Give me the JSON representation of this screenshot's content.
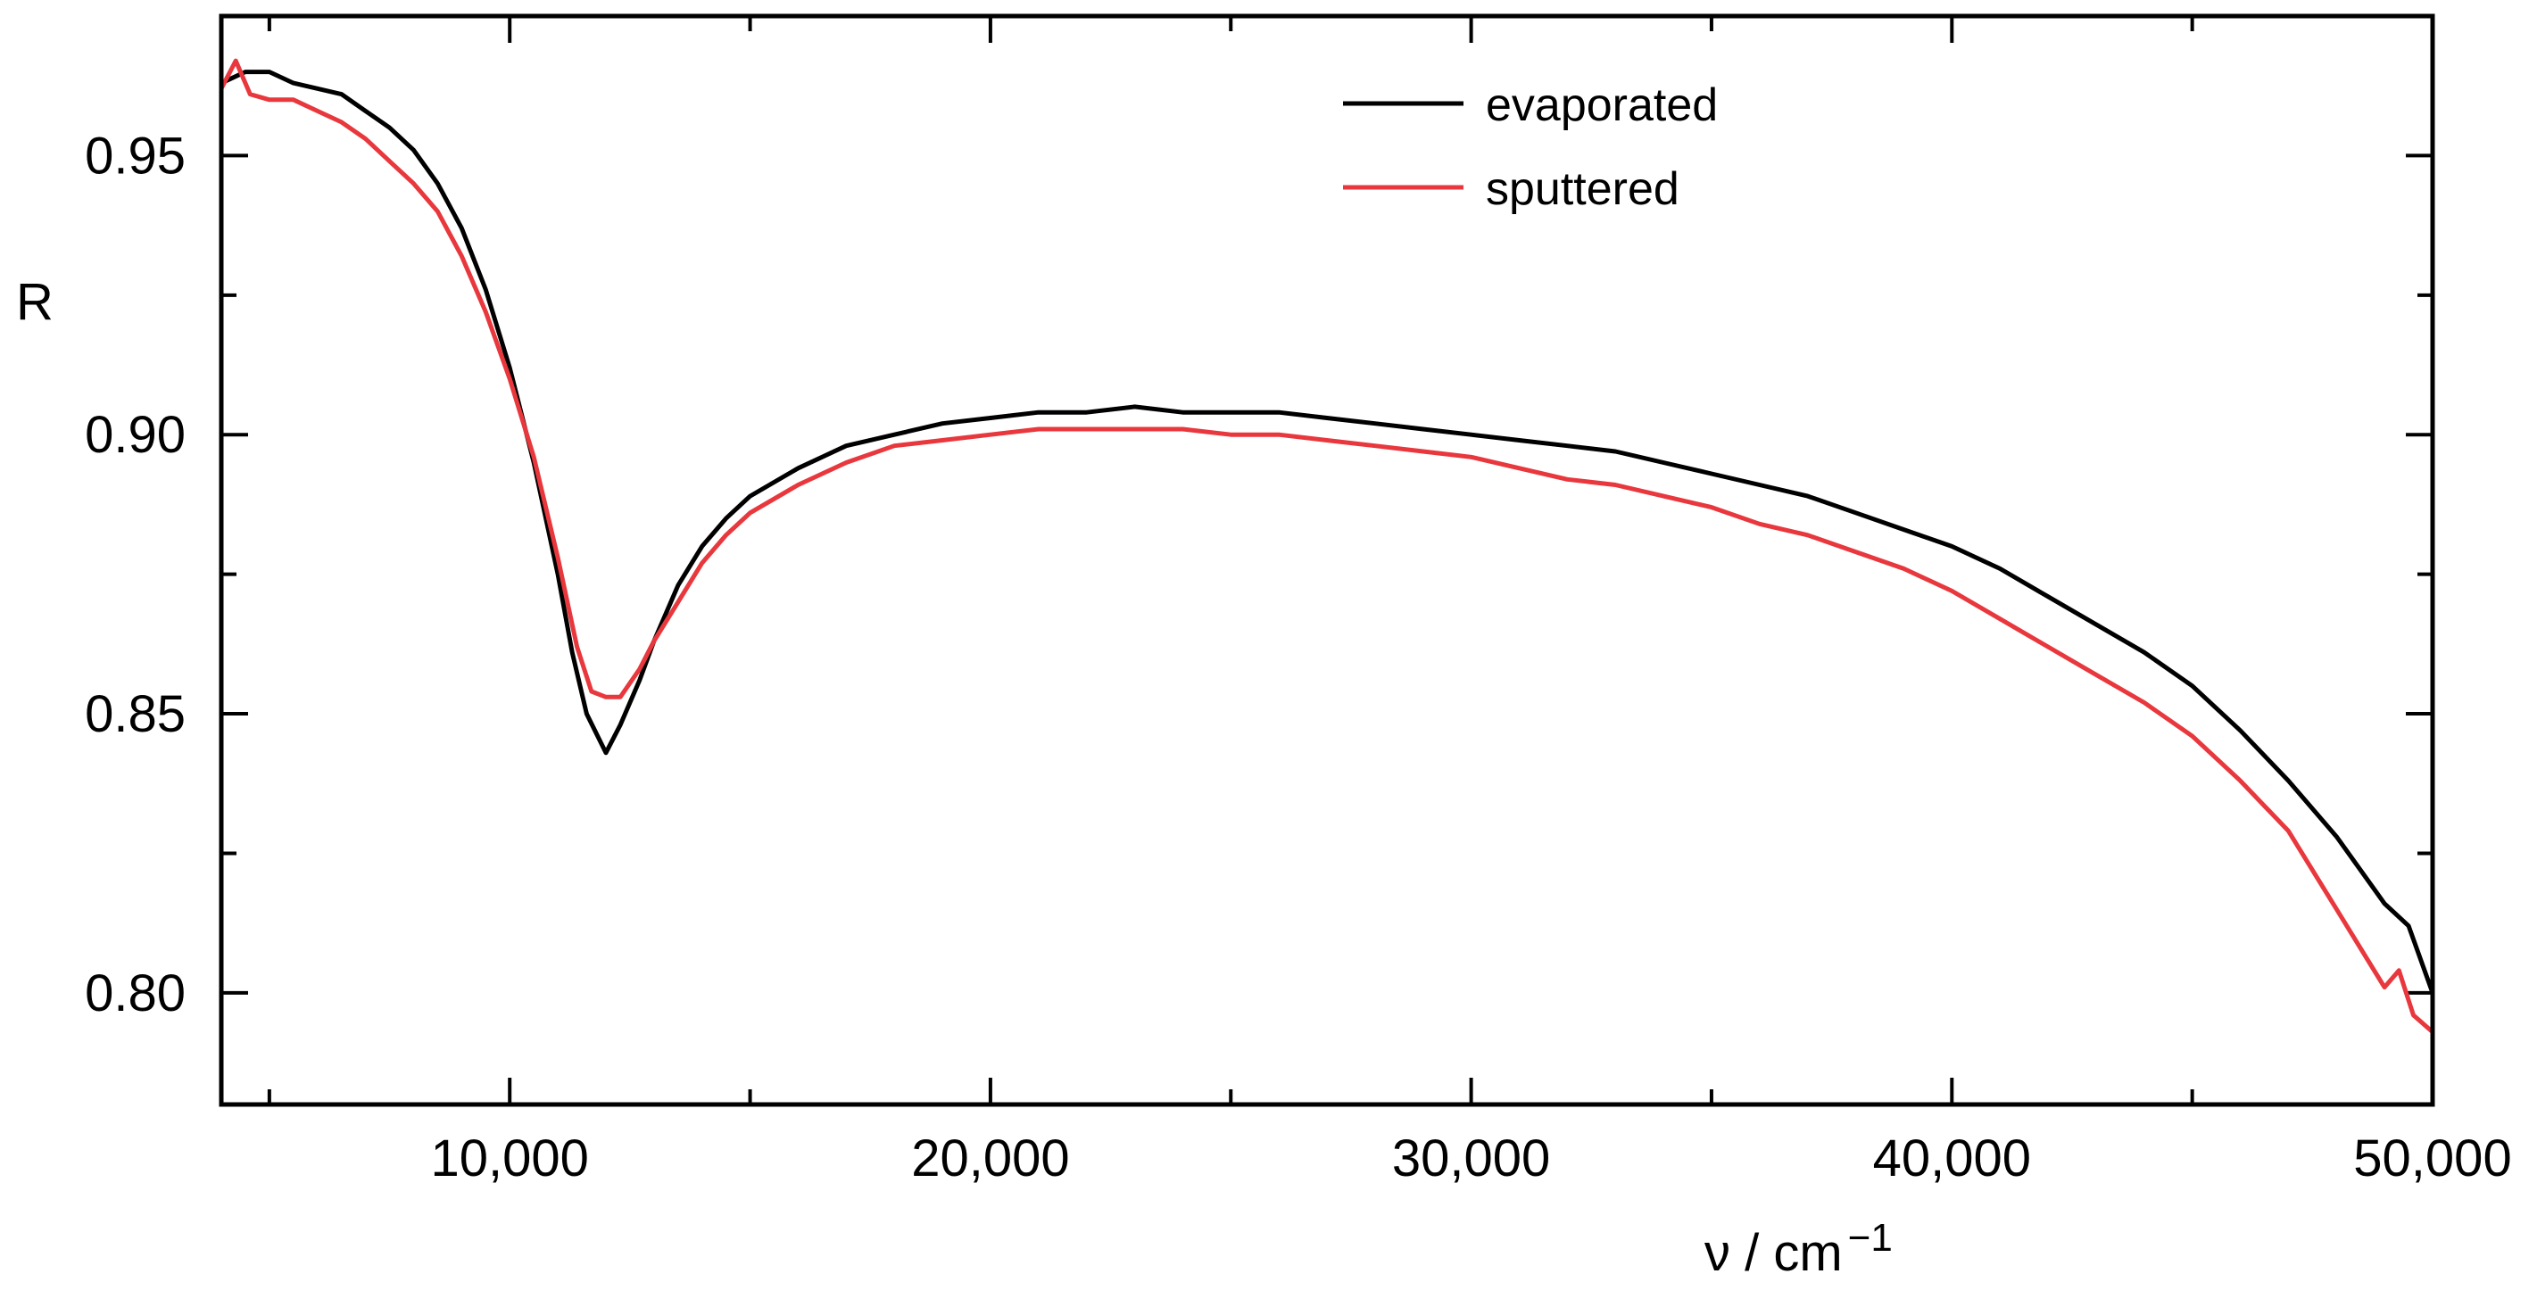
{
  "chart_data": {
    "type": "line",
    "title": "",
    "xlabel": "ν / cm",
    "xlabel_exponent": "−1",
    "ylabel": "R",
    "xlim": [
      4000,
      50000
    ],
    "ylim": [
      0.78,
      0.975
    ],
    "x_ticks": [
      10000,
      20000,
      30000,
      40000,
      50000
    ],
    "x_tick_labels": [
      "10,000",
      "20,000",
      "30,000",
      "40,000",
      "50,000"
    ],
    "y_ticks": [
      0.8,
      0.85,
      0.9,
      0.95
    ],
    "y_tick_labels": [
      "0.80",
      "0.85",
      "0.90",
      "0.95"
    ],
    "legend_position": "top-center",
    "grid": false,
    "series": [
      {
        "name": "evaporated",
        "color": "#000000",
        "points": [
          [
            4000,
            0.963
          ],
          [
            4500,
            0.965
          ],
          [
            5000,
            0.965
          ],
          [
            5500,
            0.963
          ],
          [
            6000,
            0.962
          ],
          [
            6500,
            0.961
          ],
          [
            7000,
            0.958
          ],
          [
            7500,
            0.955
          ],
          [
            8000,
            0.951
          ],
          [
            8500,
            0.945
          ],
          [
            9000,
            0.937
          ],
          [
            9500,
            0.926
          ],
          [
            10000,
            0.912
          ],
          [
            10500,
            0.895
          ],
          [
            11000,
            0.875
          ],
          [
            11300,
            0.861
          ],
          [
            11600,
            0.85
          ],
          [
            12000,
            0.843
          ],
          [
            12300,
            0.848
          ],
          [
            12700,
            0.856
          ],
          [
            13000,
            0.863
          ],
          [
            13500,
            0.873
          ],
          [
            14000,
            0.88
          ],
          [
            14500,
            0.885
          ],
          [
            15000,
            0.889
          ],
          [
            16000,
            0.894
          ],
          [
            17000,
            0.898
          ],
          [
            18000,
            0.9
          ],
          [
            19000,
            0.902
          ],
          [
            20000,
            0.903
          ],
          [
            21000,
            0.904
          ],
          [
            22000,
            0.904
          ],
          [
            23000,
            0.905
          ],
          [
            24000,
            0.904
          ],
          [
            25000,
            0.904
          ],
          [
            26000,
            0.904
          ],
          [
            27000,
            0.903
          ],
          [
            28000,
            0.902
          ],
          [
            29000,
            0.901
          ],
          [
            30000,
            0.9
          ],
          [
            31000,
            0.899
          ],
          [
            32000,
            0.898
          ],
          [
            33000,
            0.897
          ],
          [
            34000,
            0.895
          ],
          [
            35000,
            0.893
          ],
          [
            36000,
            0.891
          ],
          [
            37000,
            0.889
          ],
          [
            38000,
            0.886
          ],
          [
            39000,
            0.883
          ],
          [
            40000,
            0.88
          ],
          [
            41000,
            0.876
          ],
          [
            42000,
            0.871
          ],
          [
            43000,
            0.866
          ],
          [
            44000,
            0.861
          ],
          [
            45000,
            0.855
          ],
          [
            46000,
            0.847
          ],
          [
            47000,
            0.838
          ],
          [
            47500,
            0.833
          ],
          [
            48000,
            0.828
          ],
          [
            48500,
            0.822
          ],
          [
            49000,
            0.816
          ],
          [
            49500,
            0.812
          ],
          [
            50000,
            0.8
          ]
        ]
      },
      {
        "name": "sputtered",
        "color": "#e8383d",
        "points": [
          [
            4000,
            0.962
          ],
          [
            4300,
            0.967
          ],
          [
            4600,
            0.961
          ],
          [
            5000,
            0.96
          ],
          [
            5500,
            0.96
          ],
          [
            6000,
            0.958
          ],
          [
            6500,
            0.956
          ],
          [
            7000,
            0.953
          ],
          [
            7500,
            0.949
          ],
          [
            8000,
            0.945
          ],
          [
            8500,
            0.94
          ],
          [
            9000,
            0.932
          ],
          [
            9500,
            0.922
          ],
          [
            10000,
            0.91
          ],
          [
            10500,
            0.896
          ],
          [
            11000,
            0.878
          ],
          [
            11400,
            0.862
          ],
          [
            11700,
            0.854
          ],
          [
            12000,
            0.853
          ],
          [
            12300,
            0.853
          ],
          [
            12700,
            0.858
          ],
          [
            13000,
            0.863
          ],
          [
            13500,
            0.87
          ],
          [
            14000,
            0.877
          ],
          [
            14500,
            0.882
          ],
          [
            15000,
            0.886
          ],
          [
            16000,
            0.891
          ],
          [
            17000,
            0.895
          ],
          [
            18000,
            0.898
          ],
          [
            19000,
            0.899
          ],
          [
            20000,
            0.9
          ],
          [
            21000,
            0.901
          ],
          [
            22000,
            0.901
          ],
          [
            23000,
            0.901
          ],
          [
            24000,
            0.901
          ],
          [
            25000,
            0.9
          ],
          [
            26000,
            0.9
          ],
          [
            27000,
            0.899
          ],
          [
            28000,
            0.898
          ],
          [
            29000,
            0.897
          ],
          [
            30000,
            0.896
          ],
          [
            31000,
            0.894
          ],
          [
            32000,
            0.892
          ],
          [
            33000,
            0.891
          ],
          [
            34000,
            0.889
          ],
          [
            35000,
            0.887
          ],
          [
            36000,
            0.884
          ],
          [
            37000,
            0.882
          ],
          [
            38000,
            0.879
          ],
          [
            39000,
            0.876
          ],
          [
            40000,
            0.872
          ],
          [
            41000,
            0.867
          ],
          [
            42000,
            0.862
          ],
          [
            43000,
            0.857
          ],
          [
            44000,
            0.852
          ],
          [
            45000,
            0.846
          ],
          [
            46000,
            0.838
          ],
          [
            47000,
            0.829
          ],
          [
            47500,
            0.822
          ],
          [
            48000,
            0.815
          ],
          [
            48500,
            0.808
          ],
          [
            49000,
            0.801
          ],
          [
            49300,
            0.804
          ],
          [
            49600,
            0.796
          ],
          [
            50000,
            0.793
          ]
        ]
      }
    ]
  }
}
